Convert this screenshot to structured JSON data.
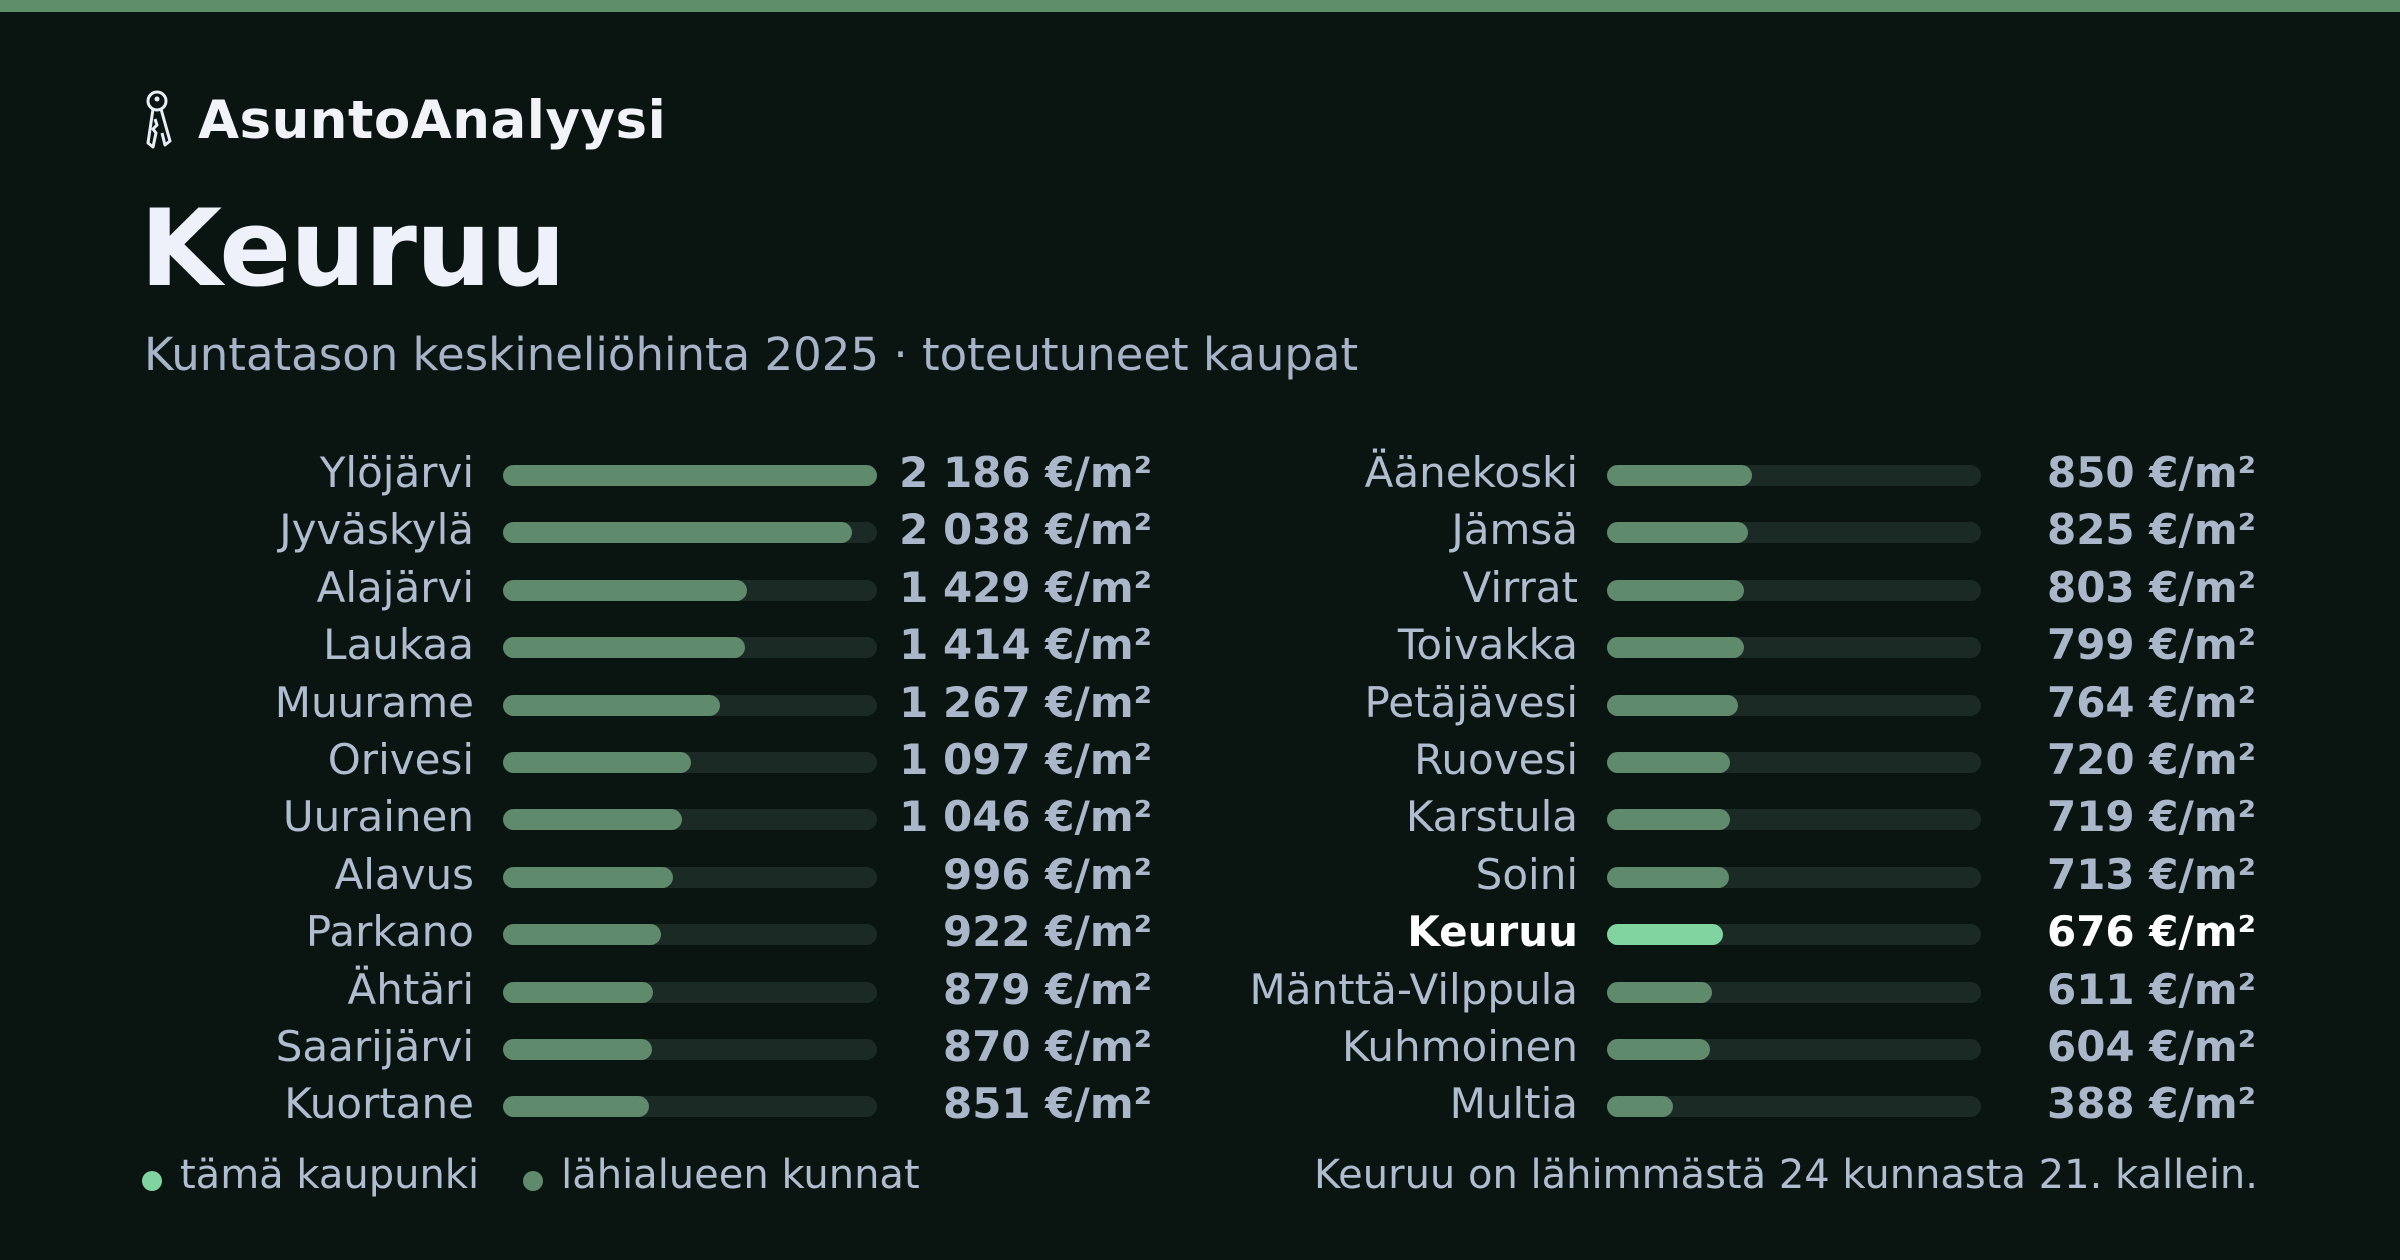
{
  "brand": {
    "name": "AsuntoAnalyysi",
    "icon": "keys-icon"
  },
  "colors": {
    "accent": "#7fd4a0",
    "bar": "#5f8a6b",
    "track": "#1c2a25",
    "background": "#0a1512",
    "topbar": "#5f8f6a"
  },
  "legend": {
    "this_city": "tämä kaupunki",
    "nearby": "lähialueen kunnat"
  },
  "footnote": "Keuruu on lähimmästä 24 kunnasta 21. kallein.",
  "chart_data": {
    "type": "bar",
    "orientation": "horizontal",
    "title": "Keuruu",
    "subtitle": "Kuntatason keskineliöhinta 2025 · toteutuneet kaupat",
    "unit": "€/m²",
    "highlight": "Keuruu",
    "xlim": [
      0,
      2186
    ],
    "grid": false,
    "categories": [
      "Ylöjärvi",
      "Jyväskylä",
      "Alajärvi",
      "Laukaa",
      "Muurame",
      "Orivesi",
      "Uurainen",
      "Alavus",
      "Parkano",
      "Ähtäri",
      "Saarijärvi",
      "Kuortane",
      "Äänekoski",
      "Jämsä",
      "Virrat",
      "Toivakka",
      "Petäjävesi",
      "Ruovesi",
      "Karstula",
      "Soini",
      "Keuruu",
      "Mänttä-Vilppula",
      "Kuhmoinen",
      "Multia"
    ],
    "values": [
      2186,
      2038,
      1429,
      1414,
      1267,
      1097,
      1046,
      996,
      922,
      879,
      870,
      851,
      850,
      825,
      803,
      799,
      764,
      720,
      719,
      713,
      676,
      611,
      604,
      388
    ],
    "value_labels": [
      "2 186 €/m²",
      "2 038 €/m²",
      "1 429 €/m²",
      "1 414 €/m²",
      "1 267 €/m²",
      "1 097 €/m²",
      "1 046 €/m²",
      "996 €/m²",
      "922 €/m²",
      "879 €/m²",
      "870 €/m²",
      "851 €/m²",
      "850 €/m²",
      "825 €/m²",
      "803 €/m²",
      "799 €/m²",
      "764 €/m²",
      "720 €/m²",
      "719 €/m²",
      "713 €/m²",
      "676 €/m²",
      "611 €/m²",
      "604 €/m²",
      "388 €/m²"
    ]
  }
}
